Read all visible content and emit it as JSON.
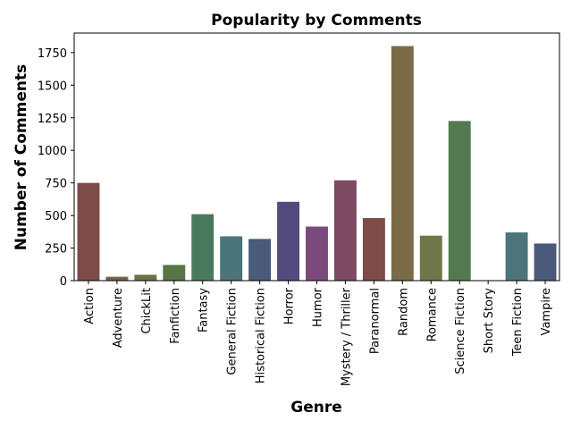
{
  "chart_data": {
    "type": "bar",
    "title": "Popularity by Comments",
    "xlabel": "Genre",
    "ylabel": "Number of Comments",
    "ylim": [
      0,
      1900
    ],
    "yticks": [
      0,
      250,
      500,
      750,
      1000,
      1250,
      1500,
      1750
    ],
    "grid": false,
    "categories": [
      "Action",
      "Adventure",
      "ChickLit",
      "Fanfiction",
      "Fantasy",
      "General Fiction",
      "Historical Fiction",
      "Horror",
      "Humor",
      "Mystery / Thriller",
      "Paranormal",
      "Random",
      "Romance",
      "Science Fiction",
      "Short Story",
      "Teen Fiction",
      "Vampire"
    ],
    "values": [
      750,
      30,
      45,
      120,
      510,
      340,
      320,
      605,
      415,
      770,
      480,
      1800,
      345,
      1225,
      0,
      370,
      285
    ],
    "colors": [
      "#7d4b48",
      "#7a6244",
      "#6f7044",
      "#587542",
      "#4a7a5e",
      "#4a7478",
      "#4a5a7a",
      "#544a7d",
      "#7a4a7d",
      "#7d4a62",
      "#7d4b48",
      "#7a6a46",
      "#6f7748",
      "#527a4e",
      "#4a7a5e",
      "#4b7578",
      "#4a5a7a"
    ]
  }
}
